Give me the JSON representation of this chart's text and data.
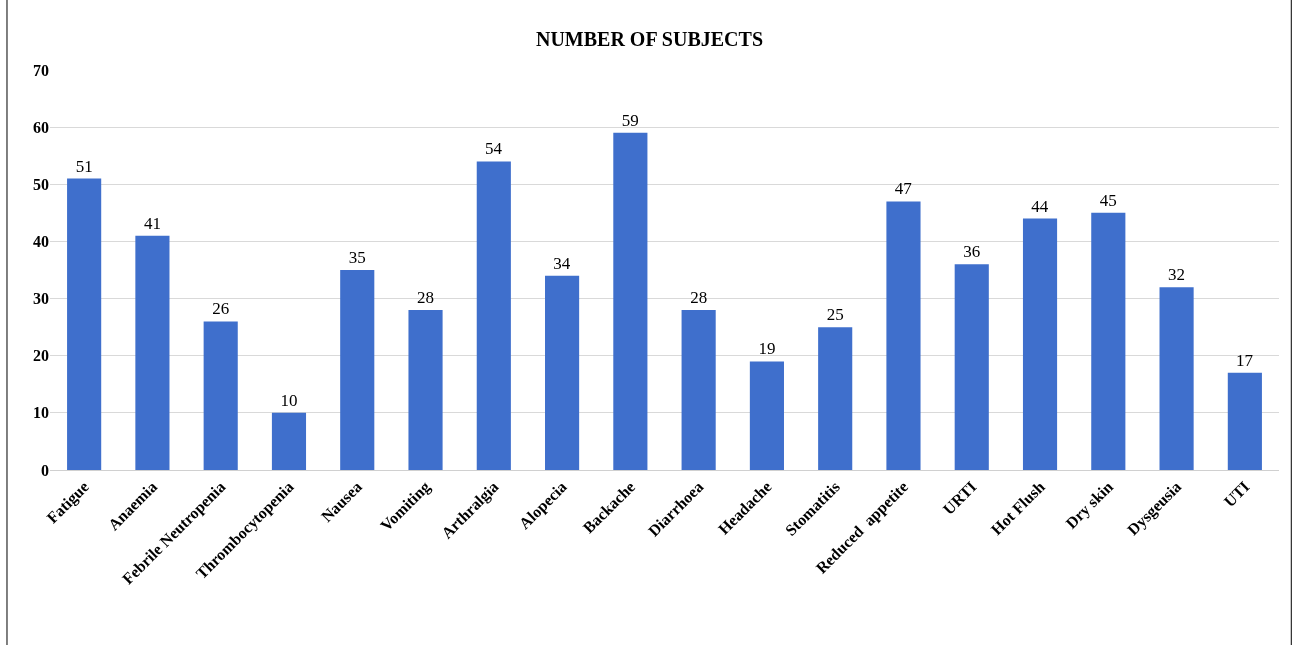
{
  "chart_data": {
    "type": "bar",
    "title": "NUMBER OF SUBJECTS",
    "categories": [
      "Fatigue",
      "Anaemia",
      "Febrile Neutropenia",
      "Thrombocytopenia",
      "Nausea",
      "Vomiting",
      "Arthralgia",
      "Alopecia",
      "Backache",
      "Diarrhoea",
      "Headache",
      "Stomatitis",
      "Reduced  appetite",
      "URTI",
      "Hot Flush",
      "Dry skin",
      "Dysgeusia",
      "UTI"
    ],
    "values": [
      51,
      41,
      26,
      10,
      35,
      28,
      54,
      34,
      59,
      28,
      19,
      25,
      47,
      36,
      44,
      45,
      32,
      17
    ],
    "color": "#3f6fcc",
    "ylim": [
      0,
      70
    ],
    "yticks": [
      0,
      10,
      20,
      30,
      40,
      50,
      60,
      70
    ],
    "grid": "y",
    "data_labels": true,
    "legend": false
  }
}
